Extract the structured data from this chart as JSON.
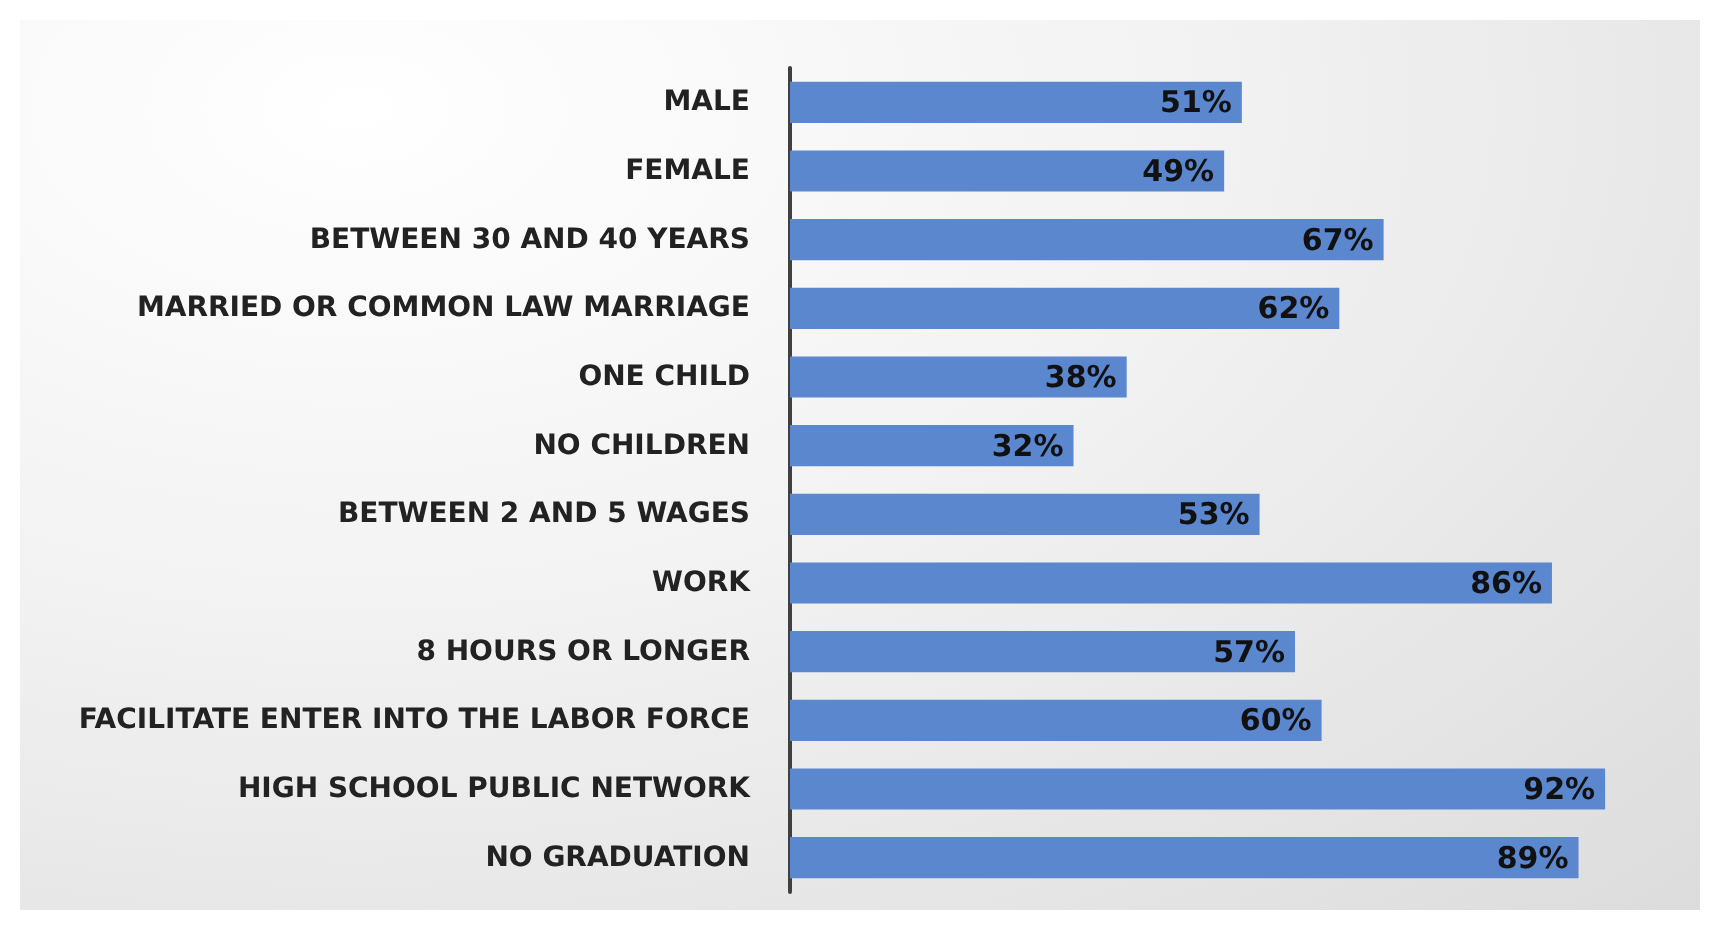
{
  "chart_data": {
    "type": "bar",
    "orientation": "horizontal",
    "categories": [
      "MALE",
      "FEMALE",
      "BETWEEN 30 AND 40 YEARS",
      "MARRIED OR COMMON LAW MARRIAGE",
      "ONE CHILD",
      "NO CHILDREN",
      "BETWEEN 2 AND 5 WAGES",
      "WORK",
      "8 HOURS OR LONGER",
      "FACILITATE ENTER INTO THE LABOR FORCE",
      "HIGH SCHOOL PUBLIC NETWORK",
      "NO GRADUATION"
    ],
    "values": [
      51,
      49,
      67,
      62,
      38,
      32,
      53,
      86,
      57,
      60,
      92,
      89
    ],
    "value_labels": [
      "51%",
      "49%",
      "67%",
      "62%",
      "38%",
      "32%",
      "53%",
      "86%",
      "57%",
      "60%",
      "92%",
      "89%"
    ],
    "color": "#5b87cf",
    "tick_labels": "y"
  }
}
